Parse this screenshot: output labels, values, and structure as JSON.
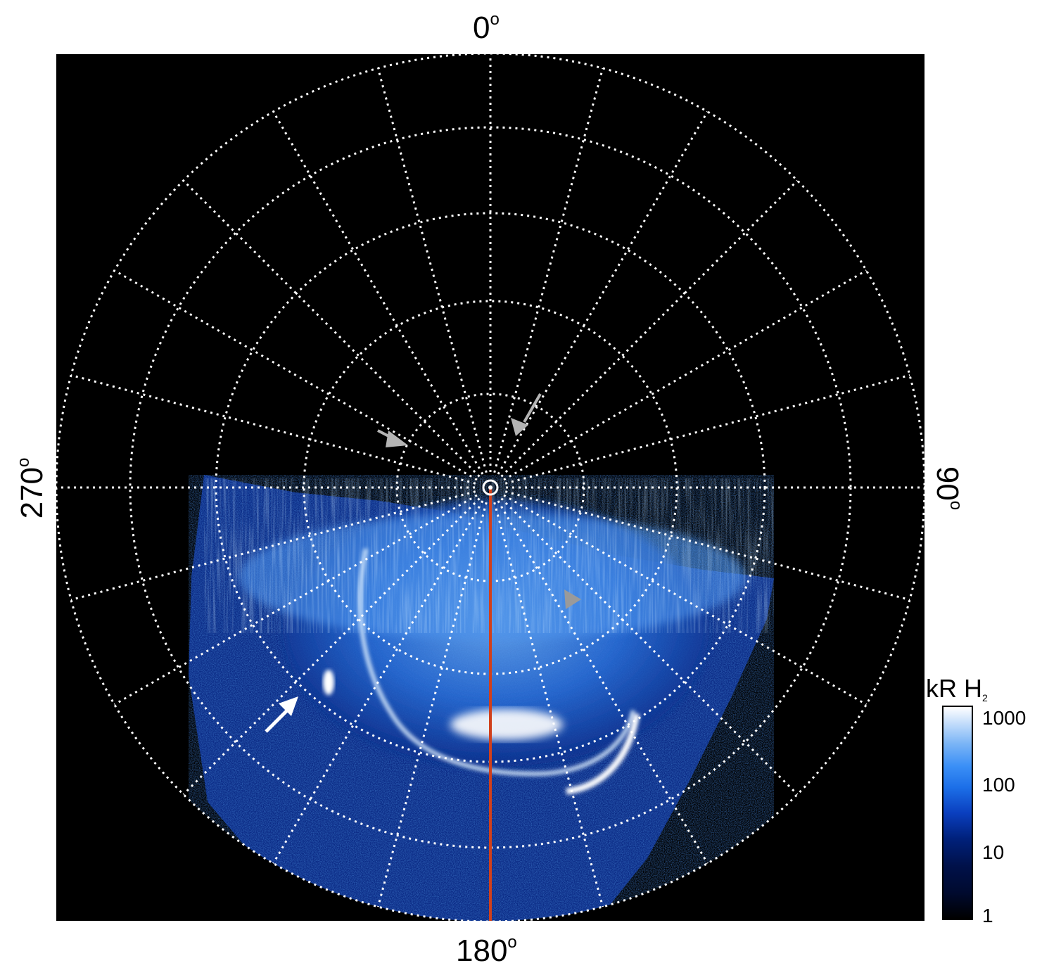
{
  "labels": {
    "top": "0",
    "bottom": "180",
    "left": "270",
    "right": "90",
    "degree_symbol": "o"
  },
  "colorbar": {
    "title": "kR H",
    "title_subscript": "2",
    "ticks": [
      "1000",
      "100",
      "10",
      "1"
    ],
    "scale": "log"
  },
  "colors": {
    "background": "#000000",
    "grid": "#ffffff",
    "meridian_line": "#d0401c",
    "aurora_bright": "#e6f2ff",
    "aurora_mid": "#3d86e6",
    "aurora_dark": "#0a2a8a",
    "arrow_white": "#ffffff",
    "arrow_gray": "#b4b4b4"
  },
  "icons": [
    "arrow-white",
    "arrow-gray-left",
    "arrow-gray-right",
    "arrow-gray-mid",
    "pole-marker"
  ]
}
